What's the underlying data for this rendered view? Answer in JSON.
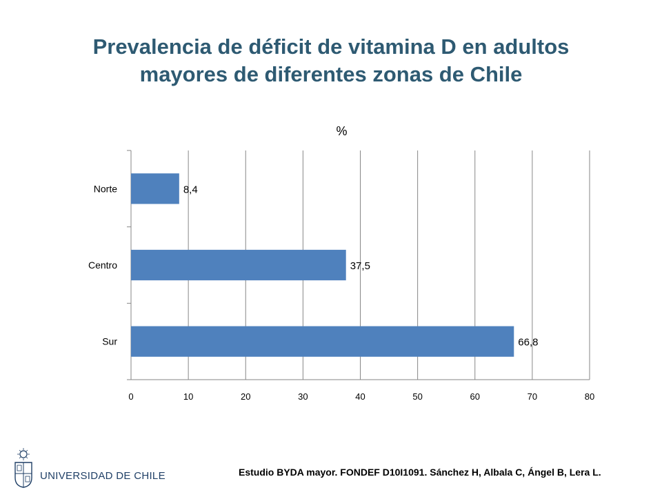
{
  "slide": {
    "title": "Prevalencia de déficit de vitamina D en adultos\nmayores  de diferentes zonas de Chile",
    "footer_note": "Estudio BYDA mayor.  FONDEF D10I1091. Sánchez H, Albala C, Ángel B, Lera L.",
    "logo_text": "UNIVERSIDAD DE CHILE"
  },
  "chart_data": {
    "type": "bar",
    "orientation": "horizontal",
    "title": "%",
    "categories": [
      "Norte",
      "Centro",
      "Sur"
    ],
    "values": [
      8.4,
      37.5,
      66.8
    ],
    "data_labels": [
      "8,4",
      "37,5",
      "66,8"
    ],
    "xlim": [
      0,
      80
    ],
    "x_ticks": [
      0,
      10,
      20,
      30,
      40,
      50,
      60,
      70,
      80
    ],
    "grid": true,
    "bar_color": "#4f81bd"
  },
  "colors": {
    "title": "#2e5a72",
    "gridline": "#868686",
    "logo": "#1f3f66"
  }
}
